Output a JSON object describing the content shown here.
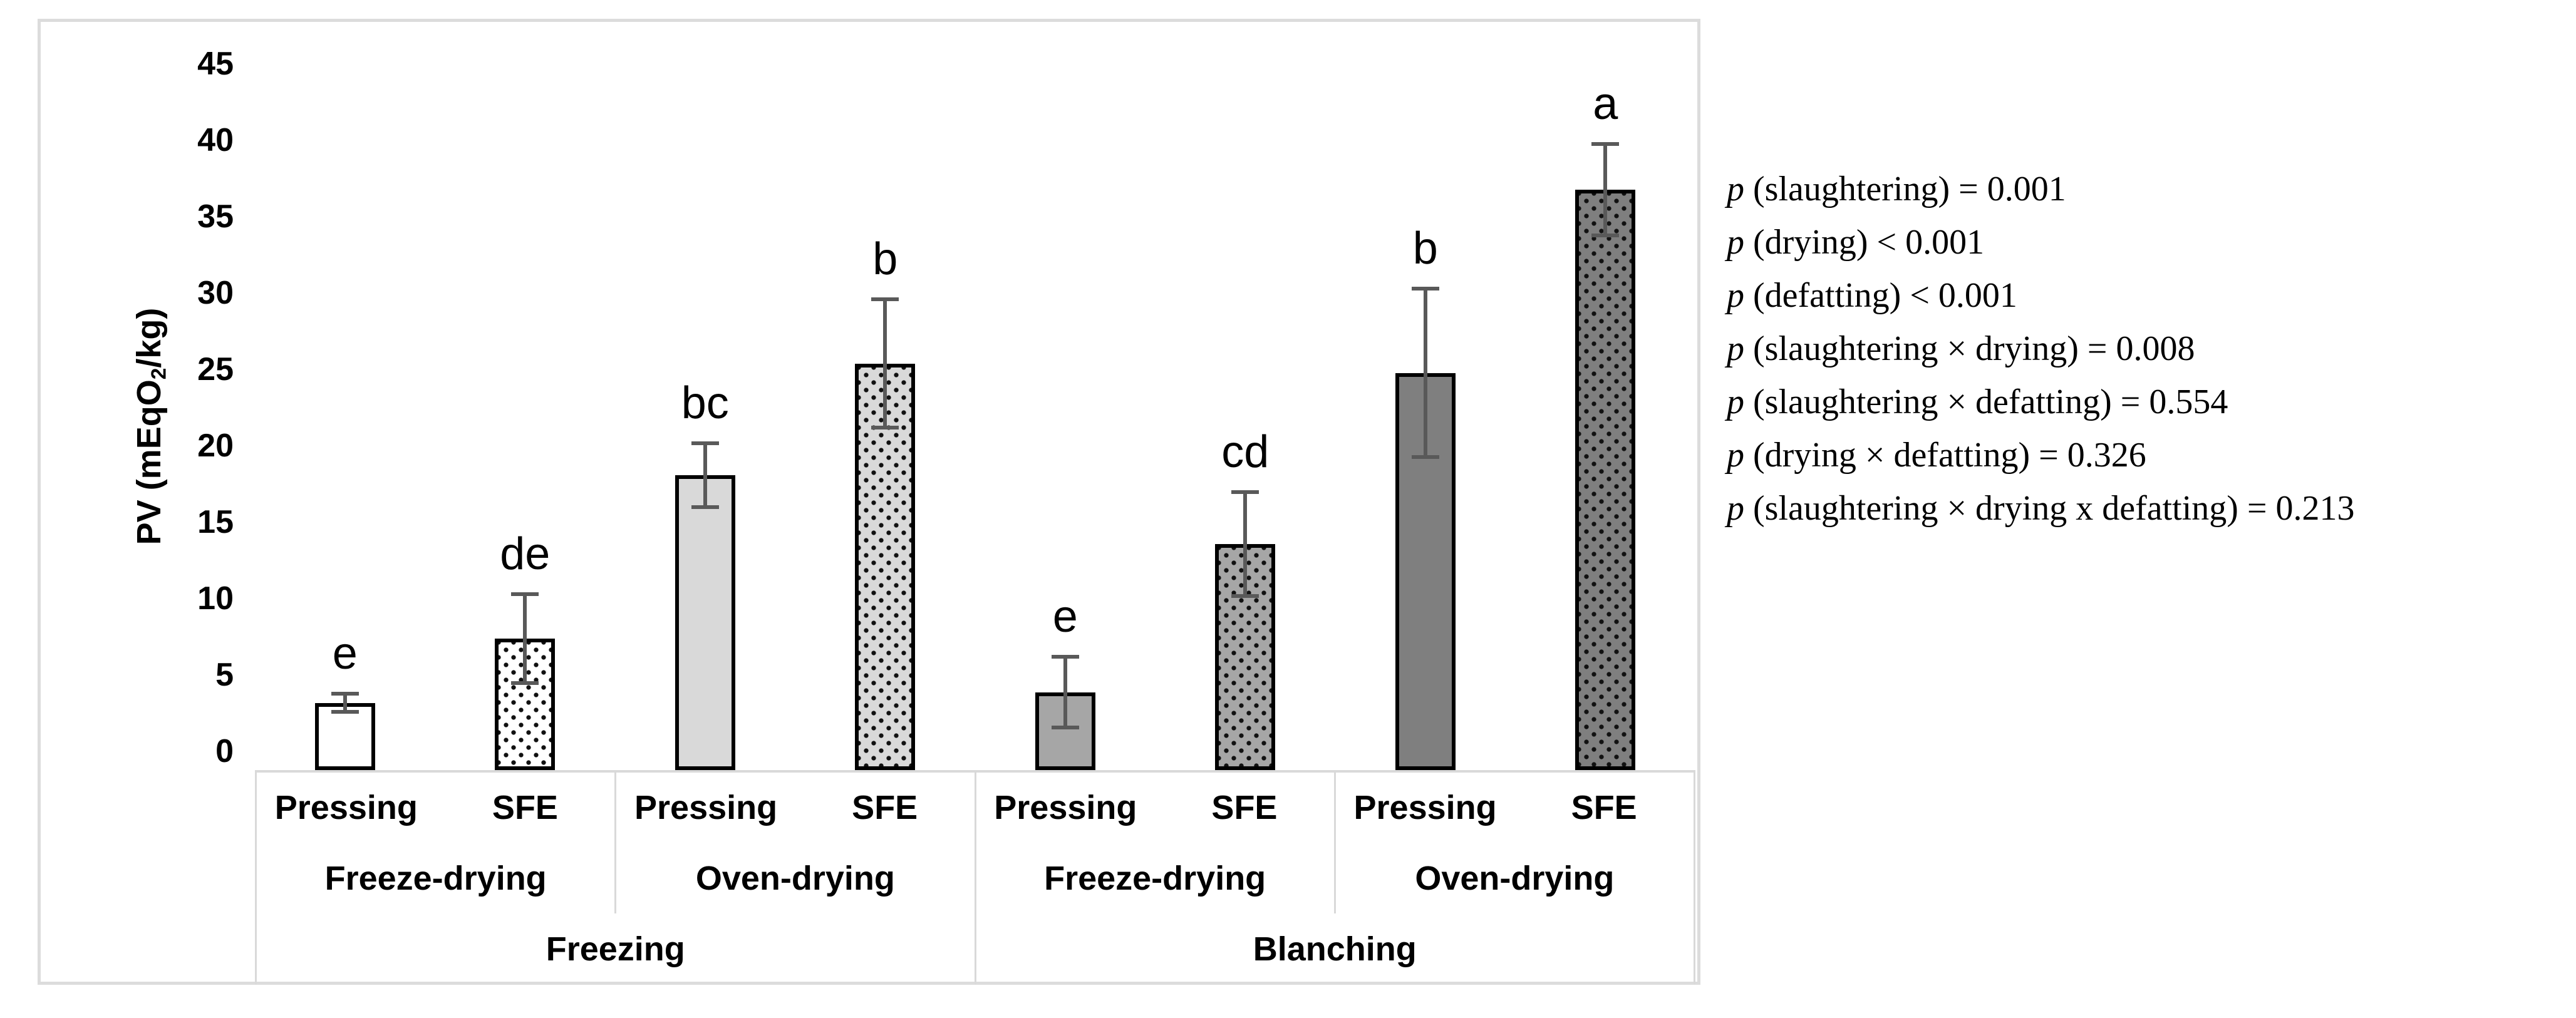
{
  "figure": {
    "ylabel": {
      "prefix": "PV (mEqO",
      "sub": "2",
      "suffix": "/kg)"
    }
  },
  "chart_data": {
    "type": "bar",
    "title": "",
    "ylabel": "PV (mEqO2/kg)",
    "ylim": [
      0,
      45
    ],
    "yticks": [
      45,
      40,
      35,
      30,
      25,
      20,
      15,
      10,
      5,
      0
    ],
    "grid": false,
    "legend": false,
    "x_axis_levels": {
      "defatting": [
        "Pressing",
        "SFE",
        "Pressing",
        "SFE",
        "Pressing",
        "SFE",
        "Pressing",
        "SFE"
      ],
      "drying": [
        "Freeze-drying",
        "Oven-drying",
        "Freeze-drying",
        "Oven-drying"
      ],
      "slaughtering": [
        "Freezing",
        "Blanching"
      ]
    },
    "bars": [
      {
        "slaughtering": "Freezing",
        "drying": "Freeze-drying",
        "defatting": "Pressing",
        "value": 4.4,
        "error": 0.6,
        "letter": "e",
        "fill": "#ffffff",
        "dotted": false
      },
      {
        "slaughtering": "Freezing",
        "drying": "Freeze-drying",
        "defatting": "SFE",
        "value": 8.6,
        "error": 2.9,
        "letter": "de",
        "fill": "#ffffff",
        "dotted": true
      },
      {
        "slaughtering": "Freezing",
        "drying": "Oven-drying",
        "defatting": "Pressing",
        "value": 19.3,
        "error": 2.1,
        "letter": "bc",
        "fill": "#d9d9d9",
        "dotted": false
      },
      {
        "slaughtering": "Freezing",
        "drying": "Oven-drying",
        "defatting": "SFE",
        "value": 26.6,
        "error": 4.2,
        "letter": "b",
        "fill": "#d9d9d9",
        "dotted": true
      },
      {
        "slaughtering": "Blanching",
        "drying": "Freeze-drying",
        "defatting": "Pressing",
        "value": 5.1,
        "error": 2.3,
        "letter": "e",
        "fill": "#a6a6a6",
        "dotted": false
      },
      {
        "slaughtering": "Blanching",
        "drying": "Freeze-drying",
        "defatting": "SFE",
        "value": 14.8,
        "error": 3.4,
        "letter": "cd",
        "fill": "#a6a6a6",
        "dotted": true
      },
      {
        "slaughtering": "Blanching",
        "drying": "Oven-drying",
        "defatting": "Pressing",
        "value": 26.0,
        "error": 5.5,
        "letter": "b",
        "fill": "#7f7f7f",
        "dotted": false
      },
      {
        "slaughtering": "Blanching",
        "drying": "Oven-drying",
        "defatting": "SFE",
        "value": 38.0,
        "error": 3.0,
        "letter": "a",
        "fill": "#7f7f7f",
        "dotted": true
      }
    ]
  },
  "p_values": [
    {
      "p": "p",
      "text": " (slaughtering) = 0.001"
    },
    {
      "p": "p",
      "text": " (drying) < 0.001"
    },
    {
      "p": "p",
      "text": " (defatting) < 0.001"
    },
    {
      "p": "p",
      "text": " (slaughtering × drying) = 0.008"
    },
    {
      "p": "p",
      "text": " (slaughtering × defatting) = 0.554"
    },
    {
      "p": "p",
      "text": " (drying × defatting) = 0.326"
    },
    {
      "p": "p",
      "text": " (slaughtering × drying x defatting) = 0.213"
    }
  ],
  "colors": {
    "error_bar": "#595959",
    "bar_border": "#000000",
    "axis_table_border": "#d9d9d9",
    "chart_frame_border": "#dcdcdc",
    "dot_pattern": "#111111",
    "bar_fills": [
      "#ffffff",
      "#d9d9d9",
      "#a6a6a6",
      "#7f7f7f"
    ]
  }
}
